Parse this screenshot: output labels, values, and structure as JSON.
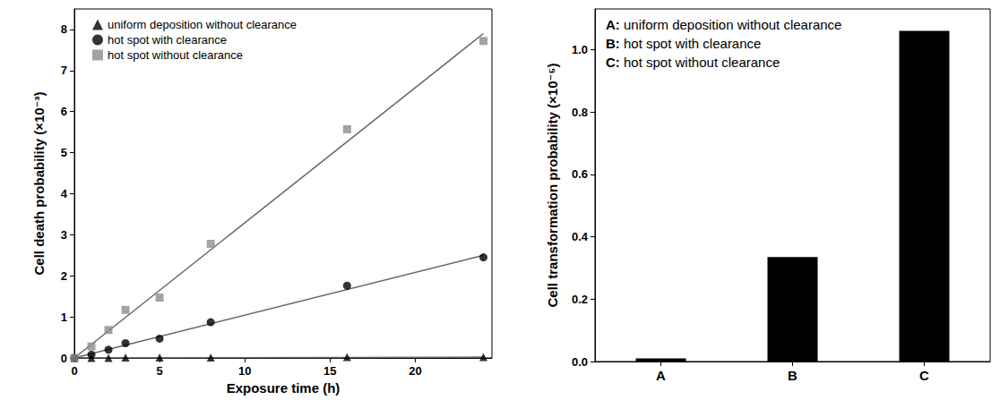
{
  "chart_data": [
    {
      "type": "scatter",
      "x_label": "Exposure time (h)",
      "y_label": "Cell death probability (×10⁻³)",
      "xlim": [
        0,
        24.5
      ],
      "xticks": [
        0,
        5,
        10,
        15,
        20
      ],
      "ylim": [
        0,
        8.5
      ],
      "yticks": [
        0,
        1,
        2,
        3,
        4,
        5,
        6,
        7,
        8
      ],
      "legend": "upper left",
      "grid": false,
      "series": [
        {
          "name": "uniform deposition without clearance",
          "color": "#000000",
          "marker": "triangle",
          "x": [
            0,
            1,
            2,
            3,
            5,
            8,
            16,
            24
          ],
          "values": [
            0,
            0,
            0,
            0.01,
            0.01,
            0.01,
            0.02,
            0.02
          ],
          "fit_x": [
            0,
            24
          ],
          "fit_values": [
            0,
            0.02
          ]
        },
        {
          "name": "hot spot with clearance",
          "color": "#000000",
          "marker": "circle",
          "x": [
            0,
            1,
            2,
            3,
            5,
            8,
            16,
            24
          ],
          "values": [
            0,
            0.08,
            0.2,
            0.36,
            0.47,
            0.87,
            1.76,
            2.45
          ],
          "fit_x": [
            0,
            24
          ],
          "fit_values": [
            0,
            2.5
          ]
        },
        {
          "name": "hot spot without clearance",
          "color": "#8c8c8c",
          "marker": "square",
          "x": [
            0,
            1,
            2,
            3,
            5,
            8,
            16,
            24
          ],
          "values": [
            0,
            0.28,
            0.68,
            1.17,
            1.47,
            2.78,
            5.57,
            7.72
          ],
          "fit_x": [
            0,
            24
          ],
          "fit_values": [
            0,
            7.9
          ]
        }
      ]
    },
    {
      "type": "bar",
      "y_label": "Cell transformation probability (×10⁻⁵)",
      "categories": [
        "A",
        "B",
        "C"
      ],
      "values": [
        0.01,
        0.335,
        1.06
      ],
      "color": "#000000",
      "ylim": [
        0,
        1.13
      ],
      "yticks": [
        {
          "value": 0,
          "label": "0.0"
        },
        {
          "value": 0.2,
          "label": "0.2"
        },
        {
          "value": 0.4,
          "label": "0.4"
        },
        {
          "value": 0.6,
          "label": "0.6"
        },
        {
          "value": 0.8,
          "label": "0.8"
        },
        {
          "value": 1,
          "label": "1.0"
        }
      ],
      "grid": false,
      "annotations": [
        "A: uniform deposition without clearance",
        "B: hot spot with clearance",
        "C: hot spot without clearance"
      ]
    }
  ]
}
